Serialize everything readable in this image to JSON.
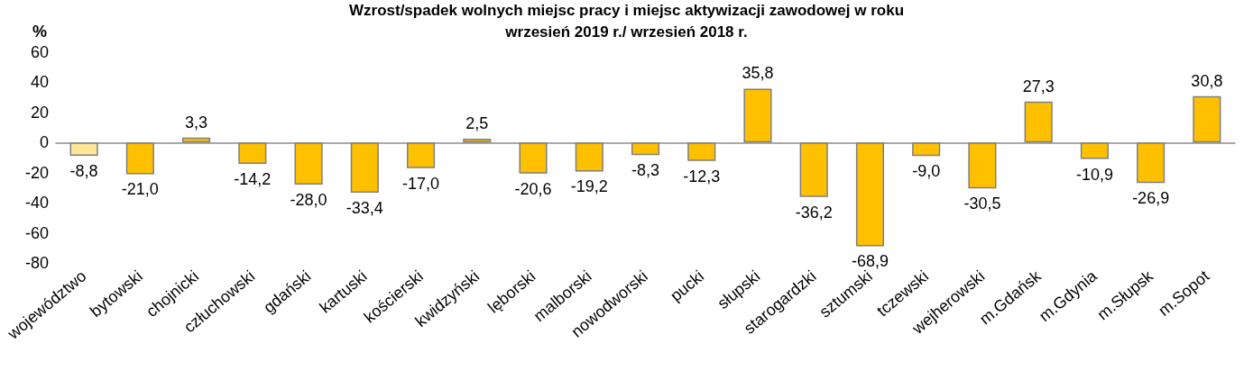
{
  "chart_data": {
    "type": "bar",
    "title": "Wzrost/spadek wolnych miejsc pracy i miejsc aktywizacji zawodowej w roku\nwrzesień 2019 r./ wrzesień 2018 r.",
    "ylabel": "%",
    "categories": [
      "województwo",
      "bytowski",
      "chojnicki",
      "człuchowski",
      "gdański",
      "kartuski",
      "kościerski",
      "kwidzyński",
      "lęborski",
      "malborski",
      "nowodworski",
      "pucki",
      "słupski",
      "starogardzki",
      "sztumski",
      "tczewski",
      "wejherowski",
      "m.Gdańsk",
      "m.Gdynia",
      "m.Słupsk",
      "m.Sopot"
    ],
    "values": [
      -8.8,
      -21.0,
      3.3,
      -14.2,
      -28.0,
      -33.4,
      -17.0,
      2.5,
      -20.6,
      -19.2,
      -8.3,
      -12.3,
      35.8,
      -36.2,
      -68.9,
      -9.0,
      -30.5,
      27.3,
      -10.9,
      -26.9,
      30.8
    ],
    "colors": [
      "#ffe699",
      "#ffc000",
      "#ffc000",
      "#ffc000",
      "#ffc000",
      "#ffc000",
      "#ffc000",
      "#ffc000",
      "#ffc000",
      "#ffc000",
      "#ffc000",
      "#ffc000",
      "#ffc000",
      "#ffc000",
      "#ffc000",
      "#ffc000",
      "#ffc000",
      "#ffc000",
      "#ffc000",
      "#ffc000",
      "#ffc000"
    ],
    "value_labels": [
      "-8,8",
      "-21,0",
      "3,3",
      "-14,2",
      "-28,0",
      "-33,4",
      "-17,0",
      "2,5",
      "-20,6",
      "-19,2",
      "-8,3",
      "-12,3",
      "35,8",
      "-36,2",
      "-68,9",
      "-9,0",
      "-30,5",
      "27,3",
      "-10,9",
      "-26,9",
      "30,8"
    ],
    "ylim": [
      -80,
      60
    ],
    "yticks": [
      -80,
      -60,
      -40,
      -20,
      0,
      20,
      40,
      60
    ]
  }
}
